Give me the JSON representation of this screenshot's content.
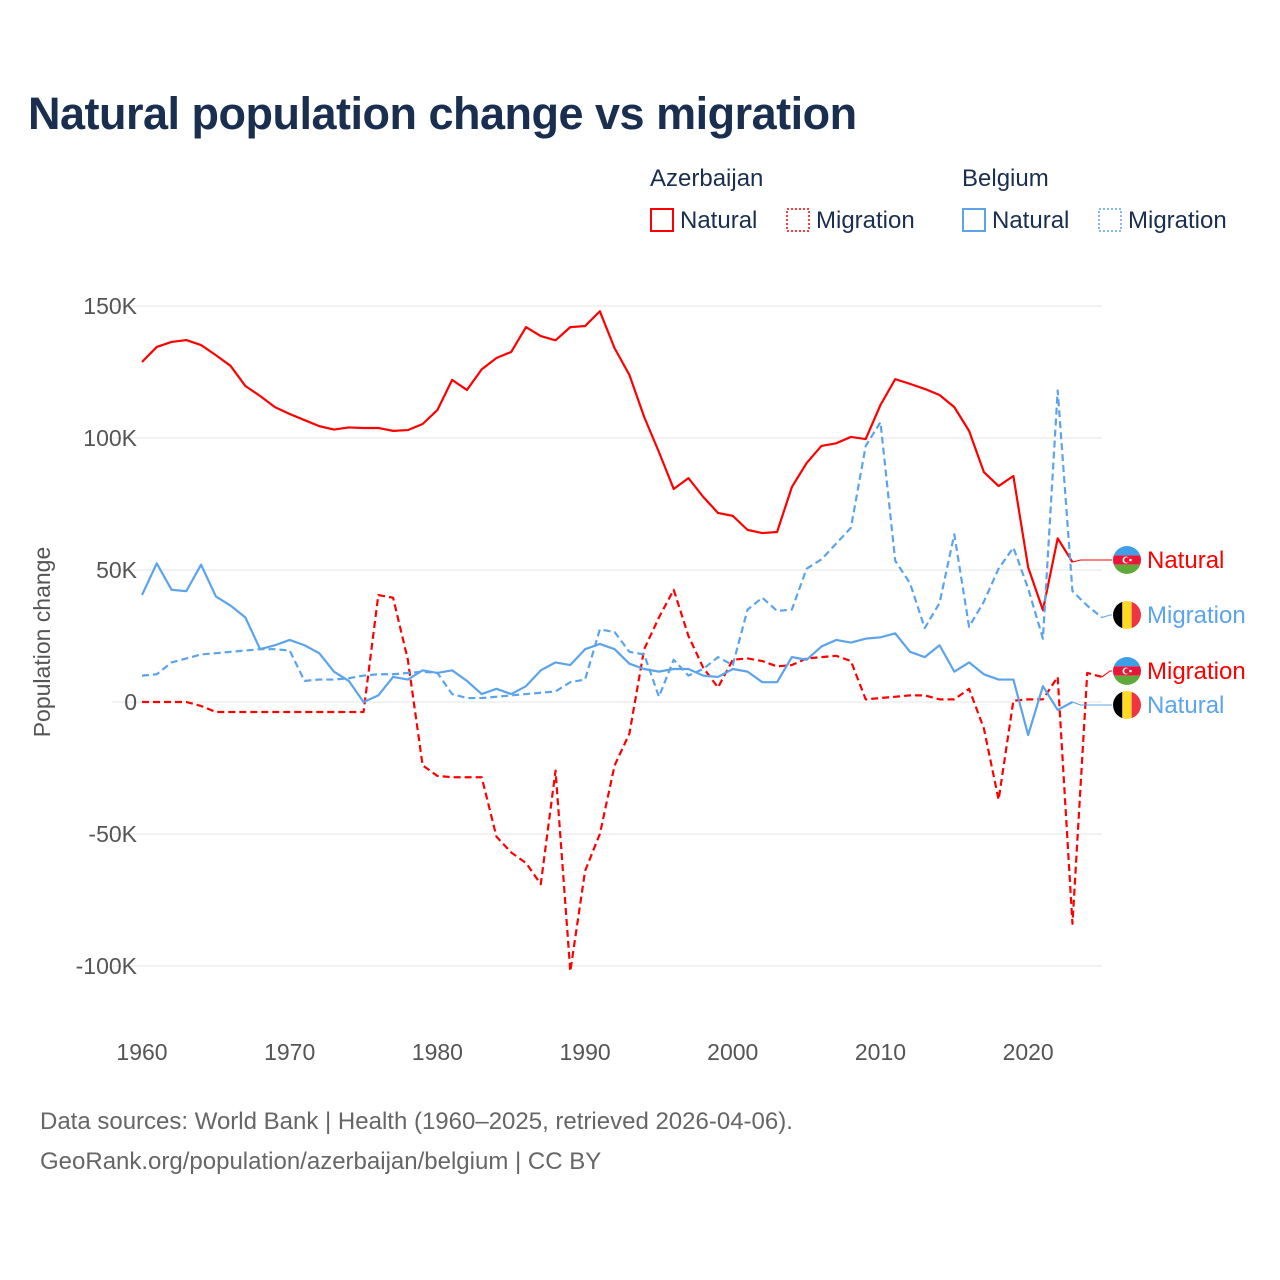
{
  "chart_data": {
    "type": "line",
    "title": "Natural population change vs migration",
    "ylabel": "Population change",
    "xlabel": "",
    "xlim": [
      1960,
      2025
    ],
    "ylim": [
      -115000,
      155000
    ],
    "grid": true,
    "x_ticks": [
      1960,
      1970,
      1980,
      1990,
      2000,
      2010,
      2020
    ],
    "x_tick_labels": [
      "1960",
      "1970",
      "1980",
      "1990",
      "2000",
      "2010",
      "2020"
    ],
    "y_ticks": [
      -100000,
      -50000,
      0,
      50000,
      100000,
      150000
    ],
    "y_tick_labels": [
      "-100K",
      "-50K",
      "0",
      "50K",
      "100K",
      "150K"
    ],
    "legend": {
      "placement": "top-right",
      "groups": [
        {
          "title": "Azerbaijan",
          "items": [
            "Natural",
            "Migration"
          ]
        },
        {
          "title": "Belgium",
          "items": [
            "Natural",
            "Migration"
          ]
        }
      ]
    },
    "series": [
      {
        "name": "Azerbaijan Natural",
        "country": "Azerbaijan",
        "label": "Natural",
        "color": "#ff0000",
        "dash": "solid",
        "start_year": 1960,
        "values": [
          128.8,
          134.5,
          136.4,
          137.1,
          135.2,
          131.4,
          127.3,
          119.7,
          115.9,
          111.7,
          109.1,
          106.8,
          104.5,
          103.2,
          104,
          103.8,
          103.8,
          102.7,
          103,
          105.3,
          110.6,
          122,
          118.2,
          126,
          130.3,
          132.6,
          142,
          138.6,
          137,
          142,
          142.4,
          148,
          134,
          123.9,
          108,
          94.7,
          80.7,
          84.8,
          77.7,
          71.6,
          70.5,
          65.2,
          64,
          64.4,
          81.4,
          90.5,
          97,
          98,
          100.4,
          99.6,
          112.5,
          122.3,
          120.5,
          118.6,
          116.3,
          111.7,
          102.7,
          87.1,
          81.8,
          85.6,
          51,
          34.8,
          62,
          53
        ]
      },
      {
        "name": "Azerbaijan Migration",
        "country": "Azerbaijan",
        "label": "Migration",
        "color": "#ff0000",
        "dash": "dashed",
        "start_year": 1960,
        "values": [
          0,
          0,
          0,
          0,
          -1.5,
          -3.8,
          -3.8,
          -3.8,
          -3.8,
          -3.8,
          -3.8,
          -3.8,
          -3.8,
          -3.8,
          -3.8,
          -3.8,
          40.5,
          39.5,
          16,
          -24,
          -28,
          -28.5,
          -28.5,
          -28.5,
          -51,
          -57,
          -61,
          -69,
          -26,
          -102,
          -64,
          -50,
          -24,
          -12,
          20,
          32,
          42.5,
          25,
          13,
          5.5,
          16,
          16.5,
          15.5,
          13.5,
          14,
          16.5,
          17,
          17.5,
          15.5,
          1,
          1.5,
          2,
          2.5,
          2.5,
          1,
          1,
          5,
          -10,
          -37,
          0.5,
          1,
          1,
          9.5,
          -84,
          11,
          9.5
        ]
      },
      {
        "name": "Belgium Natural",
        "country": "Belgium",
        "label": "Natural",
        "color": "#5ba4ec",
        "dash": "solid",
        "start_year": 1960,
        "values": [
          40.5,
          52.5,
          42.5,
          42,
          52,
          40,
          36.5,
          32,
          20,
          21.5,
          23.5,
          21.5,
          18.5,
          11.5,
          8,
          0,
          2.5,
          9.5,
          8.5,
          12,
          11,
          12,
          8,
          3,
          5,
          3,
          6,
          12,
          15,
          14,
          20,
          22,
          20,
          14.5,
          12.5,
          11.5,
          12.5,
          12.5,
          10,
          9.5,
          12.5,
          11.5,
          7.5,
          7.5,
          17,
          16,
          21,
          23.5,
          22.5,
          24,
          24.5,
          26,
          19,
          17,
          21.5,
          11.5,
          15,
          10.5,
          8.5,
          8.5,
          -12.5,
          6,
          -3,
          0
        ]
      },
      {
        "name": "Belgium Migration",
        "country": "Belgium",
        "label": "Migration",
        "color": "#5ba4ec",
        "dash": "dashed",
        "start_year": 1960,
        "values": [
          10,
          10.5,
          15,
          16.5,
          18,
          18.5,
          19,
          19.5,
          20,
          20,
          19.5,
          8,
          8.5,
          8.5,
          9,
          10,
          10.5,
          10.5,
          11,
          11.5,
          11,
          3,
          1.5,
          1.5,
          2,
          2.5,
          3,
          3.5,
          4,
          7.5,
          8.5,
          27.5,
          26.5,
          19,
          18,
          2,
          16,
          10,
          12.5,
          17,
          14,
          35,
          39.5,
          34.5,
          35,
          50.5,
          54,
          60,
          66,
          97,
          106,
          53.5,
          45,
          28,
          37.5,
          63.5,
          28.5,
          38,
          50.5,
          58.5,
          43,
          24,
          118,
          42,
          36.5,
          32
        ]
      }
    ],
    "value_unit": "thousands",
    "end_labels": [
      {
        "series": "Azerbaijan Natural",
        "text": "Natural",
        "flag": "azerbaijan-flag"
      },
      {
        "series": "Belgium Migration",
        "text": "Migration",
        "flag": "belgium-flag"
      },
      {
        "series": "Azerbaijan Migration",
        "text": "Migration",
        "flag": "azerbaijan-flag"
      },
      {
        "series": "Belgium Natural",
        "text": "Natural",
        "flag": "belgium-flag"
      }
    ]
  },
  "footer": {
    "source": "Data sources: World Bank | Health (1960–2025, retrieved 2026-04-06).",
    "credit": "GeoRank.org/population/azerbaijan/belgium | CC BY"
  }
}
